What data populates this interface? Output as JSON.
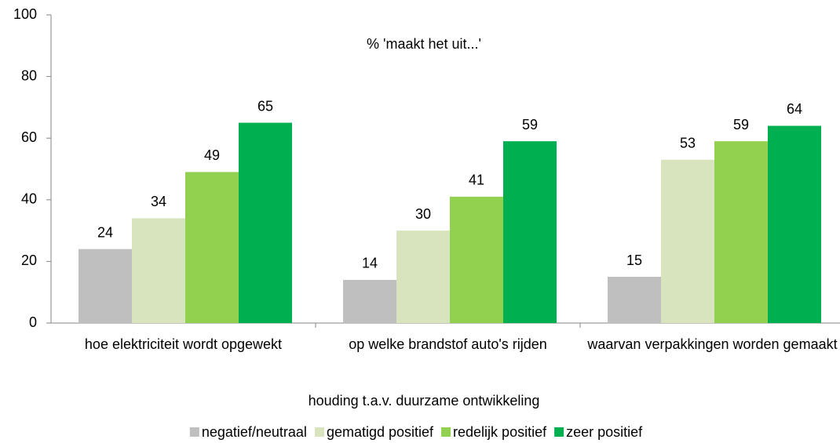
{
  "chart_data": {
    "type": "bar",
    "annotation": "% 'maakt het uit...'",
    "x_label": "houding t.a.v. duurzame ontwikkeling",
    "categories": [
      "hoe elektriciteit wordt opgewekt",
      "op welke brandstof auto's rijden",
      "waarvan verpakkingen worden gemaakt"
    ],
    "series": [
      {
        "name": "negatief/neutraal",
        "color": "#bfbfbf",
        "values": [
          24,
          14,
          15
        ]
      },
      {
        "name": "gematigd positief",
        "color": "#d7e4bd",
        "values": [
          34,
          30,
          53
        ]
      },
      {
        "name": "redelijk positief",
        "color": "#92d050",
        "values": [
          49,
          41,
          59
        ]
      },
      {
        "name": "zeer positief",
        "color": "#00b050",
        "values": [
          65,
          59,
          64
        ]
      }
    ],
    "ylim": [
      0,
      100
    ],
    "yticks": [
      0,
      20,
      40,
      60,
      80,
      100
    ],
    "grid": false,
    "legend": "bottom"
  }
}
